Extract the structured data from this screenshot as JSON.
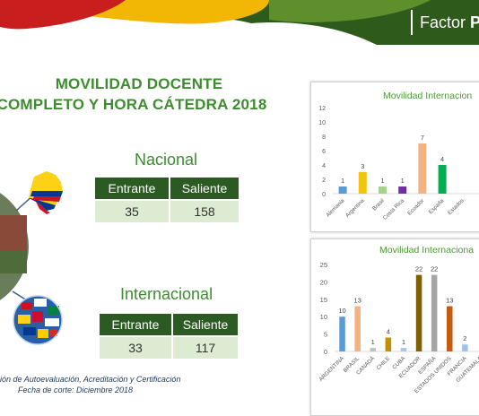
{
  "header": {
    "logo_text_1": "Factor",
    "logo_text_2": "P"
  },
  "title": {
    "line1": "MOVILIDAD DOCENTE",
    "line2": "COMPLETO Y HORA CÁTEDRA 2018"
  },
  "nacional": {
    "label": "Nacional",
    "headers": [
      "Entrante",
      "Saliente"
    ],
    "values": [
      "35",
      "158"
    ]
  },
  "internacional": {
    "label": "Internacional",
    "headers": [
      "Entrante",
      "Saliente"
    ],
    "values": [
      "33",
      "117"
    ]
  },
  "footer": {
    "line1": "ión de Autoevaluación, Acreditación y  Certificación",
    "line2": "Fecha de corte: Diciembre  2018"
  },
  "colors": {
    "header_green": "#2e5a1c",
    "accent_yellow": "#f2b705",
    "accent_red": "#c81e1e",
    "title_green": "#3d8c2f"
  },
  "chart_data": [
    {
      "type": "bar",
      "title": "Movilidad Internacion",
      "categories": [
        "Alemania",
        "Argentina",
        "Brasil",
        "Costa Rica",
        "Ecuador",
        "España",
        "Estados"
      ],
      "values": [
        1,
        3,
        1,
        1,
        7,
        4,
        null
      ],
      "colors": [
        "#5b9bd5",
        "#f2c40f",
        "#a9d18e",
        "#7030a0",
        "#f4b183",
        "#00b050",
        "#ffffff"
      ],
      "ylim": [
        0,
        12
      ],
      "yticks": [
        0,
        2,
        4,
        6,
        8,
        10,
        12
      ],
      "grid": false
    },
    {
      "type": "bar",
      "title": "Movilidad Internaciona",
      "categories": [
        "ARGENTINA",
        "BRASIL",
        "CANADÁ",
        "CHILE",
        "CUBA",
        "ECUADOR",
        "ESPAÑA",
        "ESTADOS UNIDOS",
        "FRANCIA",
        "GUATEMALA"
      ],
      "values": [
        10,
        13,
        1,
        4,
        1,
        22,
        22,
        13,
        2,
        null
      ],
      "colors": [
        "#5b9bd5",
        "#f4b183",
        "#bfbfbf",
        "#c09000",
        "#a9c8e8",
        "#806000",
        "#a5a5a5",
        "#c55a11",
        "#9dc3e6",
        "#ffffff"
      ],
      "ylim": [
        0,
        25
      ],
      "yticks": [
        0,
        5,
        10,
        15,
        20,
        25
      ],
      "grid": false
    }
  ]
}
